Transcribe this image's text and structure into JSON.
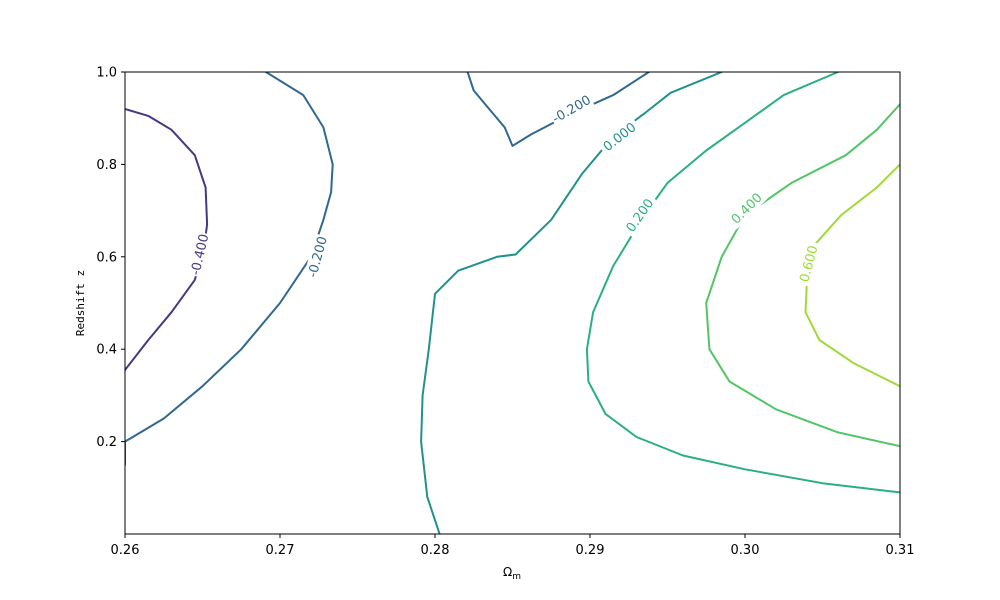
{
  "chart_data": {
    "type": "contour",
    "title": "",
    "xlabel_main": "Ω",
    "xlabel_sub": "m",
    "ylabel": "Redshift z",
    "xlim": [
      0.26,
      0.31
    ],
    "ylim": [
      0.0,
      1.0
    ],
    "grid": false,
    "xticks": [
      {
        "value": 0.26,
        "label": "0.26"
      },
      {
        "value": 0.27,
        "label": "0.27"
      },
      {
        "value": 0.28,
        "label": "0.28"
      },
      {
        "value": 0.29,
        "label": "0.29"
      },
      {
        "value": 0.3,
        "label": "0.30"
      },
      {
        "value": 0.31,
        "label": "0.31"
      }
    ],
    "yticks": [
      {
        "value": 0.2,
        "label": "0.2"
      },
      {
        "value": 0.4,
        "label": "0.4"
      },
      {
        "value": 0.6,
        "label": "0.6"
      },
      {
        "value": 0.8,
        "label": "0.8"
      },
      {
        "value": 1.0,
        "label": "1.0"
      }
    ],
    "levels": [
      {
        "level": -0.4,
        "label": "-0.400",
        "color": "#443983",
        "paths": [
          [
            [
              0.26,
              0.92
            ],
            [
              0.2615,
              0.905
            ],
            [
              0.263,
              0.875
            ],
            [
              0.2645,
              0.82
            ],
            [
              0.2652,
              0.75
            ],
            [
              0.2653,
              0.67
            ],
            [
              0.2651,
              0.62
            ],
            [
              0.2645,
              0.55
            ],
            [
              0.263,
              0.48
            ],
            [
              0.2615,
              0.42
            ],
            [
              0.26,
              0.355
            ]
          ]
        ],
        "labels": [
          {
            "x": 0.2648,
            "y": 0.605,
            "rotate": -77
          }
        ]
      },
      {
        "level": -0.2,
        "label": "-0.200",
        "color": "#31688e",
        "paths": [
          [
            [
              0.2691,
              1.0
            ],
            [
              0.2715,
              0.95
            ],
            [
              0.2728,
              0.88
            ],
            [
              0.2734,
              0.8
            ],
            [
              0.2733,
              0.74
            ],
            [
              0.2728,
              0.68
            ],
            [
              0.272,
              0.6
            ],
            [
              0.27,
              0.5
            ],
            [
              0.2675,
              0.4
            ],
            [
              0.265,
              0.32
            ],
            [
              0.2625,
              0.25
            ],
            [
              0.26,
              0.2
            ],
            [
              0.26,
              0.15
            ]
          ],
          [
            [
              0.2821,
              1.0
            ],
            [
              0.2825,
              0.96
            ],
            [
              0.2835,
              0.92
            ],
            [
              0.2845,
              0.88
            ],
            [
              0.285,
              0.84
            ],
            [
              0.2862,
              0.865
            ],
            [
              0.2885,
              0.905
            ],
            [
              0.2915,
              0.95
            ],
            [
              0.2938,
              1.0
            ]
          ]
        ],
        "labels": [
          {
            "x": 0.2724,
            "y": 0.6,
            "rotate": -75
          },
          {
            "x": 0.2888,
            "y": 0.92,
            "rotate": -30
          }
        ]
      },
      {
        "level": 0.0,
        "label": "0.000",
        "color": "#21918c",
        "paths": [
          [
            [
              0.2803,
              0.0
            ],
            [
              0.2795,
              0.08
            ],
            [
              0.2791,
              0.2
            ],
            [
              0.2792,
              0.3
            ],
            [
              0.2796,
              0.4
            ],
            [
              0.28,
              0.52
            ],
            [
              0.2815,
              0.57
            ],
            [
              0.284,
              0.6
            ],
            [
              0.2852,
              0.605
            ],
            [
              0.2875,
              0.68
            ],
            [
              0.2895,
              0.78
            ],
            [
              0.2915,
              0.86
            ],
            [
              0.2935,
              0.91
            ],
            [
              0.2952,
              0.955
            ],
            [
              0.2985,
              1.0
            ]
          ]
        ],
        "labels": [
          {
            "x": 0.2919,
            "y": 0.86,
            "rotate": -38
          }
        ]
      },
      {
        "level": 0.2,
        "label": "0.200",
        "color": "#2ab07f",
        "paths": [
          [
            [
              0.31,
              0.09
            ],
            [
              0.305,
              0.11
            ],
            [
              0.3,
              0.14
            ],
            [
              0.296,
              0.17
            ],
            [
              0.293,
              0.21
            ],
            [
              0.291,
              0.26
            ],
            [
              0.2899,
              0.33
            ],
            [
              0.2898,
              0.4
            ],
            [
              0.2902,
              0.48
            ],
            [
              0.2915,
              0.58
            ],
            [
              0.2935,
              0.69
            ],
            [
              0.295,
              0.76
            ],
            [
              0.2975,
              0.83
            ],
            [
              0.3,
              0.89
            ],
            [
              0.3025,
              0.95
            ],
            [
              0.306,
              1.0
            ]
          ]
        ],
        "labels": [
          {
            "x": 0.2932,
            "y": 0.69,
            "rotate": -55
          }
        ]
      },
      {
        "level": 0.4,
        "label": "0.400",
        "color": "#52c569",
        "paths": [
          [
            [
              0.31,
              0.19
            ],
            [
              0.306,
              0.22
            ],
            [
              0.302,
              0.27
            ],
            [
              0.299,
              0.33
            ],
            [
              0.2977,
              0.4
            ],
            [
              0.2975,
              0.5
            ],
            [
              0.2985,
              0.6
            ],
            [
              0.3,
              0.69
            ],
            [
              0.303,
              0.76
            ],
            [
              0.3065,
              0.82
            ],
            [
              0.3085,
              0.875
            ],
            [
              0.31,
              0.93
            ]
          ]
        ],
        "labels": [
          {
            "x": 0.3001,
            "y": 0.705,
            "rotate": -45
          }
        ]
      },
      {
        "level": 0.6,
        "label": "0.600",
        "color": "#a0da39",
        "paths": [
          [
            [
              0.31,
              0.32
            ],
            [
              0.307,
              0.37
            ],
            [
              0.3048,
              0.42
            ],
            [
              0.3039,
              0.48
            ],
            [
              0.304,
              0.55
            ],
            [
              0.3046,
              0.63
            ],
            [
              0.3062,
              0.69
            ],
            [
              0.3085,
              0.75
            ],
            [
              0.31,
              0.8
            ]
          ]
        ],
        "labels": [
          {
            "x": 0.3041,
            "y": 0.585,
            "rotate": -75
          }
        ]
      }
    ]
  }
}
